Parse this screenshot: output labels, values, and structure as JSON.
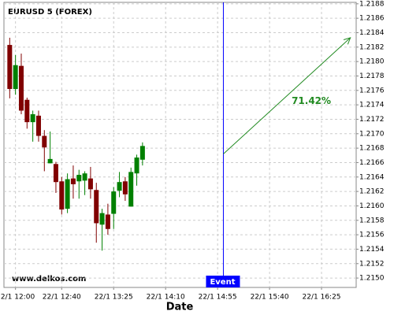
{
  "chart_data": {
    "type": "candlestick",
    "title": "EURUSD 5 (FOREX)",
    "x_label": "Date",
    "watermark": "www.delkos.com",
    "x": [
      "22/1 11:55",
      "22/1 12:00",
      "22/1 12:05",
      "22/1 12:10",
      "22/1 12:15",
      "22/1 12:20",
      "22/1 12:25",
      "22/1 12:30",
      "22/1 12:35",
      "22/1 12:40",
      "22/1 12:45",
      "22/1 12:50",
      "22/1 12:55",
      "22/1 13:00",
      "22/1 13:05",
      "22/1 13:10",
      "22/1 13:15",
      "22/1 13:20",
      "22/1 13:25",
      "22/1 13:30",
      "22/1 13:35",
      "22/1 13:40",
      "22/1 13:45",
      "22/1 13:50"
    ],
    "open": [
      1.21823,
      1.21762,
      1.21794,
      1.21747,
      1.21716,
      1.21725,
      1.21697,
      1.21659,
      1.21658,
      1.21634,
      1.21596,
      1.21638,
      1.21634,
      1.21635,
      1.21638,
      1.21622,
      1.21574,
      1.21588,
      1.21589,
      1.21621,
      1.21634,
      1.21599,
      1.21645,
      1.21664
    ],
    "high": [
      1.21833,
      1.21809,
      1.21811,
      1.2175,
      1.21732,
      1.21732,
      1.21705,
      1.21703,
      1.21661,
      1.2164,
      1.21645,
      1.21656,
      1.2165,
      1.21648,
      1.21654,
      1.21632,
      1.21596,
      1.21603,
      1.21626,
      1.21647,
      1.2164,
      1.21653,
      1.21671,
      1.21688
    ],
    "low": [
      1.21749,
      1.21754,
      1.21727,
      1.21707,
      1.21689,
      1.21689,
      1.21648,
      1.21659,
      1.21618,
      1.21588,
      1.2159,
      1.2161,
      1.2161,
      1.21615,
      1.2161,
      1.21549,
      1.21538,
      1.2156,
      1.21568,
      1.21612,
      1.21607,
      1.21599,
      1.21628,
      1.21656
    ],
    "close": [
      1.21762,
      1.21795,
      1.21732,
      1.21716,
      1.21727,
      1.21697,
      1.21681,
      1.21665,
      1.21633,
      1.21595,
      1.21637,
      1.2163,
      1.21643,
      1.21645,
      1.21623,
      1.21576,
      1.2159,
      1.21568,
      1.2162,
      1.21633,
      1.21616,
      1.21647,
      1.21667,
      1.21683
    ],
    "up_color": "#008000",
    "down_color": "#800000",
    "xlim": [
      "22/1 11:50",
      "22/1 16:55"
    ],
    "xticks": [
      "22/1 12:00",
      "22/1 12:40",
      "22/1 13:25",
      "22/1 14:10",
      "22/1 14:55",
      "22/1 15:40",
      "22/1 16:25"
    ],
    "ylim": [
      1.21487,
      1.21882
    ],
    "yticks": [
      {
        "value": 1.215,
        "label": "1.2150"
      },
      {
        "value": 1.2152,
        "label": "1.2152"
      },
      {
        "value": 1.2154,
        "label": "1.2154"
      },
      {
        "value": 1.2156,
        "label": "1.2156"
      },
      {
        "value": 1.2158,
        "label": "1.2158"
      },
      {
        "value": 1.216,
        "label": "1.2160"
      },
      {
        "value": 1.2162,
        "label": "1.2162"
      },
      {
        "value": 1.2164,
        "label": "1.2164"
      },
      {
        "value": 1.2166,
        "label": "1.2166"
      },
      {
        "value": 1.2168,
        "label": "1.2168"
      },
      {
        "value": 1.217,
        "label": "1.2170"
      },
      {
        "value": 1.2172,
        "label": "1.2172"
      },
      {
        "value": 1.2174,
        "label": "1.2174"
      },
      {
        "value": 1.2176,
        "label": "1.2176"
      },
      {
        "value": 1.2178,
        "label": "1.2178"
      },
      {
        "value": 1.218,
        "label": "1.2180"
      },
      {
        "value": 1.2182,
        "label": "1.2182"
      },
      {
        "value": 1.2184,
        "label": "1.2184"
      },
      {
        "value": 1.2186,
        "label": "1.2186"
      },
      {
        "value": 1.2188,
        "label": "1.2188"
      }
    ],
    "grid": true,
    "event": {
      "x": "22/1 15:00",
      "label": "Event",
      "color": "#0000ff"
    },
    "projection": {
      "x": [
        "22/1 15:00",
        "22/1 16:50"
      ],
      "y": [
        1.21672,
        1.21833
      ],
      "label": "71.42%",
      "color": "#228b22"
    }
  }
}
